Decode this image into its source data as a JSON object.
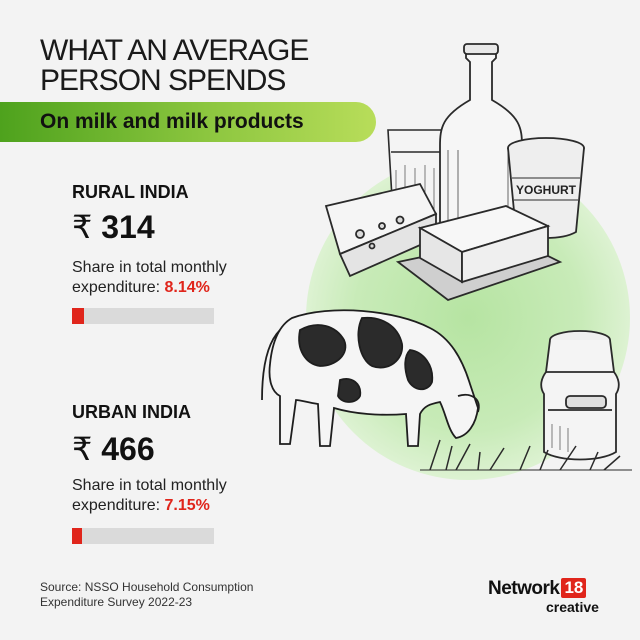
{
  "title": "WHAT AN AVERAGE PERSON SPENDS",
  "subtitle": "On milk and milk products",
  "regions": [
    {
      "name": "RURAL INDIA",
      "currency": "₹",
      "amount": "314",
      "share_label": "Share in total monthly expenditure:",
      "share_value": "8.14%",
      "share_percent": 8.14
    },
    {
      "name": "URBAN INDIA",
      "currency": "₹",
      "amount": "466",
      "share_label": "Share in total monthly expenditure:",
      "share_value": "7.15%",
      "share_percent": 7.15
    }
  ],
  "bottle_label": "YOGHURT",
  "source": "Source: NSSO Household Consumption Expenditure Survey 2022-23",
  "brand": {
    "name": "Network",
    "number": "18",
    "sub": "creative"
  },
  "colors": {
    "accent_red": "#e0251b",
    "banner_green": "#6cb52d",
    "circle_green": "#c2e8b2",
    "bar_gray": "#dadada"
  },
  "icons": [
    "milk-bottle-icon",
    "glass-icon",
    "yoghurt-cup-icon",
    "cheese-icon",
    "butter-icon",
    "cow-icon",
    "milk-can-icon",
    "grass-icon"
  ]
}
